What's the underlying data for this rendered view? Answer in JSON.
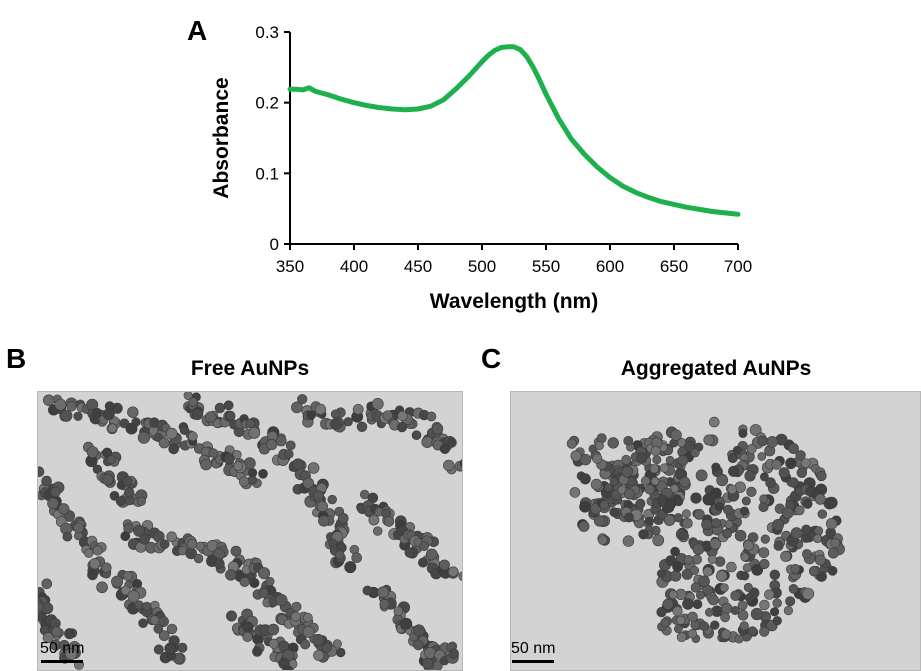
{
  "panels": {
    "a": {
      "letter": "A"
    },
    "b": {
      "letter": "B",
      "title": "Free AuNPs",
      "scale_label": "50 nm"
    },
    "c": {
      "letter": "C",
      "title": "Aggregated AuNPs",
      "scale_label": "50 nm"
    }
  },
  "chart_data": {
    "type": "line",
    "title": "",
    "xlabel": "Wavelength (nm)",
    "ylabel": "Absorbance",
    "xlim": [
      350,
      700
    ],
    "ylim": [
      0,
      0.3
    ],
    "xticks": [
      350,
      400,
      450,
      500,
      550,
      600,
      650,
      700
    ],
    "yticks": [
      0,
      0.1,
      0.2,
      0.3
    ],
    "xtick_labels": [
      "350",
      "400",
      "450",
      "500",
      "550",
      "600",
      "650",
      "700"
    ],
    "ytick_labels": [
      "0",
      "0.1",
      "0.2",
      "0.3"
    ],
    "grid": false,
    "series": [
      {
        "color": "#1db04b",
        "x": [
          350,
          355,
          360,
          365,
          370,
          380,
          390,
          400,
          410,
          420,
          430,
          440,
          450,
          460,
          470,
          480,
          490,
          500,
          505,
          510,
          515,
          520,
          525,
          530,
          535,
          540,
          545,
          550,
          560,
          570,
          580,
          590,
          600,
          610,
          620,
          630,
          640,
          650,
          660,
          670,
          680,
          690,
          700
        ],
        "y": [
          0.219,
          0.219,
          0.218,
          0.221,
          0.216,
          0.211,
          0.205,
          0.2,
          0.196,
          0.193,
          0.191,
          0.19,
          0.191,
          0.195,
          0.204,
          0.22,
          0.238,
          0.258,
          0.267,
          0.274,
          0.278,
          0.279,
          0.279,
          0.275,
          0.265,
          0.25,
          0.232,
          0.212,
          0.177,
          0.148,
          0.127,
          0.109,
          0.094,
          0.082,
          0.073,
          0.066,
          0.06,
          0.056,
          0.052,
          0.049,
          0.046,
          0.044,
          0.042
        ]
      }
    ]
  }
}
